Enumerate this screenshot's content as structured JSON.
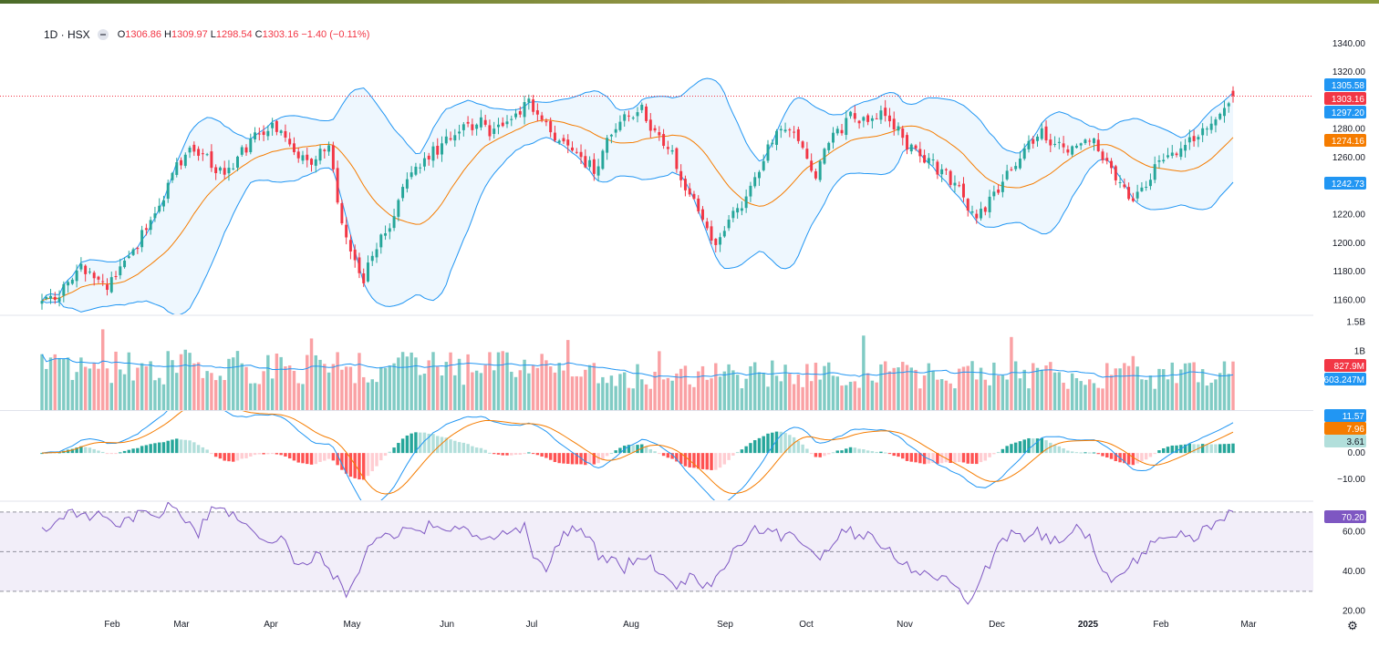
{
  "legend": {
    "symbol": "1D · HSX",
    "o_label": "O",
    "o": "1306.86",
    "h_label": "H",
    "h": "1309.97",
    "l_label": "L",
    "l": "1298.54",
    "c_label": "C",
    "c": "1303.16",
    "change": "−1.40 (−0.11%)"
  },
  "icons": {
    "visibility_toggle": "eye-toggle-icon",
    "settings": "gear-icon"
  },
  "colors": {
    "up": "#26a69a",
    "down": "#f23645",
    "bollinger_band": "#2196f3",
    "bollinger_fill": "#e3f2fd",
    "ma_line": "#f57c00",
    "rsi_line": "#7e57c2",
    "rsi_fill": "#ede7f6",
    "volume_ma": "#2196f3",
    "macd_line": "#2196f3",
    "signal_line": "#f57c00"
  },
  "chart_data": [
    {
      "type": "candlestick",
      "pane": "price",
      "symbol": "HSX",
      "interval": "1D",
      "ylim": [
        1150,
        1345
      ],
      "yticks": [
        "1340.00",
        "1320.00",
        "1280.00",
        "1260.00",
        "1240.00",
        "1220.00",
        "1200.00",
        "1180.00",
        "1160.00"
      ],
      "x_ticks": [
        "Feb",
        "Mar",
        "Apr",
        "May",
        "Jun",
        "Jul",
        "Aug",
        "Sep",
        "Oct",
        "Nov",
        "Dec",
        "2025",
        "Feb",
        "Mar"
      ],
      "close_anchor_points": [
        [
          0,
          1163
        ],
        [
          3,
          1160
        ],
        [
          6,
          1172
        ],
        [
          9,
          1182
        ],
        [
          12,
          1176
        ],
        [
          15,
          1170
        ],
        [
          18,
          1185
        ],
        [
          22,
          1200
        ],
        [
          26,
          1220
        ],
        [
          30,
          1248
        ],
        [
          34,
          1265
        ],
        [
          38,
          1258
        ],
        [
          42,
          1248
        ],
        [
          46,
          1265
        ],
        [
          50,
          1280
        ],
        [
          54,
          1282
        ],
        [
          58,
          1266
        ],
        [
          62,
          1255
        ],
        [
          66,
          1270
        ],
        [
          68,
          1230
        ],
        [
          71,
          1192
        ],
        [
          74,
          1175
        ],
        [
          77,
          1195
        ],
        [
          80,
          1215
        ],
        [
          84,
          1245
        ],
        [
          88,
          1258
        ],
        [
          92,
          1268
        ],
        [
          96,
          1282
        ],
        [
          100,
          1285
        ],
        [
          104,
          1278
        ],
        [
          108,
          1288
        ],
        [
          112,
          1300
        ],
        [
          116,
          1282
        ],
        [
          119,
          1272
        ],
        [
          122,
          1268
        ],
        [
          125,
          1258
        ],
        [
          127,
          1250
        ],
        [
          130,
          1275
        ],
        [
          134,
          1288
        ],
        [
          138,
          1292
        ],
        [
          142,
          1275
        ],
        [
          145,
          1260
        ],
        [
          148,
          1238
        ],
        [
          151,
          1225
        ],
        [
          153,
          1210
        ],
        [
          155,
          1198
        ],
        [
          158,
          1218
        ],
        [
          161,
          1228
        ],
        [
          164,
          1245
        ],
        [
          167,
          1268
        ],
        [
          170,
          1282
        ],
        [
          173,
          1278
        ],
        [
          176,
          1262
        ],
        [
          178,
          1245
        ],
        [
          180,
          1265
        ],
        [
          183,
          1278
        ],
        [
          186,
          1290
        ],
        [
          189,
          1286
        ],
        [
          192,
          1290
        ],
        [
          195,
          1285
        ],
        [
          198,
          1275
        ],
        [
          201,
          1262
        ],
        [
          204,
          1258
        ],
        [
          207,
          1250
        ],
        [
          210,
          1242
        ],
        [
          213,
          1225
        ],
        [
          215,
          1218
        ],
        [
          218,
          1232
        ],
        [
          221,
          1242
        ],
        [
          224,
          1258
        ],
        [
          227,
          1270
        ],
        [
          230,
          1277
        ],
        [
          233,
          1270
        ],
        [
          236,
          1264
        ],
        [
          239,
          1270
        ],
        [
          242,
          1270
        ],
        [
          245,
          1255
        ],
        [
          248,
          1240
        ],
        [
          251,
          1234
        ],
        [
          254,
          1242
        ],
        [
          257,
          1258
        ],
        [
          260,
          1265
        ],
        [
          263,
          1268
        ],
        [
          266,
          1274
        ],
        [
          269,
          1285
        ],
        [
          272,
          1295
        ],
        [
          274,
          1303.16
        ]
      ],
      "last_values": {
        "close": 1303.16,
        "high": 1309.97,
        "low": 1298.54,
        "open": 1306.86
      }
    },
    {
      "type": "line",
      "pane": "price",
      "series": [
        {
          "role": "bollinger-upper",
          "value_label": "1305.58",
          "value": 1305.58
        },
        {
          "role": "bollinger-basis",
          "value_label": "1274.16",
          "value": 1274.16
        },
        {
          "role": "bollinger-lower",
          "value_label": "1242.73",
          "value": 1242.73
        }
      ]
    },
    {
      "type": "bar",
      "pane": "volume",
      "ylim": [
        0,
        1600000000
      ],
      "yticks": [
        "1.5B",
        "1B"
      ],
      "value_labels": {
        "volume": "827.9M",
        "volume_ma": "603.247M"
      },
      "volume_ma_value": 603247000,
      "last_volume": 827900000
    },
    {
      "type": "bar",
      "pane": "macd",
      "ylim": [
        -18,
        16
      ],
      "yticks": [
        "0.00",
        "−10.00"
      ],
      "value_labels": {
        "macd": "11.57",
        "signal": "7.96",
        "histogram": "3.61"
      },
      "macd": 11.57,
      "signal": 7.96,
      "histogram": 3.61
    },
    {
      "type": "line",
      "pane": "rsi",
      "ylim": [
        18,
        75
      ],
      "yticks": [
        "60.00",
        "40.00",
        "20.00"
      ],
      "band_upper": 70,
      "band_middle": 50,
      "band_lower": 30,
      "value_label": "70.20",
      "value": 70.2,
      "anchor_points": [
        [
          0,
          60
        ],
        [
          3,
          65
        ],
        [
          6,
          70
        ],
        [
          9,
          66
        ],
        [
          12,
          70
        ],
        [
          15,
          66
        ],
        [
          18,
          62
        ],
        [
          21,
          68
        ],
        [
          24,
          72
        ],
        [
          27,
          70
        ],
        [
          30,
          73
        ],
        [
          33,
          66
        ],
        [
          36,
          60
        ],
        [
          38,
          68
        ],
        [
          40,
          72
        ],
        [
          43,
          70
        ],
        [
          46,
          65
        ],
        [
          49,
          60
        ],
        [
          52,
          52
        ],
        [
          55,
          58
        ],
        [
          58,
          46
        ],
        [
          61,
          44
        ],
        [
          64,
          50
        ],
        [
          66,
          40
        ],
        [
          68,
          35
        ],
        [
          70,
          30
        ],
        [
          72,
          36
        ],
        [
          75,
          50
        ],
        [
          78,
          56
        ],
        [
          81,
          58
        ],
        [
          84,
          62
        ],
        [
          87,
          60
        ],
        [
          90,
          64
        ],
        [
          93,
          58
        ],
        [
          96,
          62
        ],
        [
          99,
          60
        ],
        [
          102,
          55
        ],
        [
          105,
          58
        ],
        [
          108,
          60
        ],
        [
          111,
          62
        ],
        [
          113,
          46
        ],
        [
          116,
          42
        ],
        [
          119,
          55
        ],
        [
          122,
          62
        ],
        [
          125,
          60
        ],
        [
          128,
          48
        ],
        [
          131,
          46
        ],
        [
          134,
          42
        ],
        [
          137,
          48
        ],
        [
          140,
          46
        ],
        [
          143,
          38
        ],
        [
          146,
          32
        ],
        [
          149,
          38
        ],
        [
          152,
          34
        ],
        [
          155,
          36
        ],
        [
          158,
          46
        ],
        [
          161,
          56
        ],
        [
          164,
          62
        ],
        [
          167,
          60
        ],
        [
          170,
          58
        ],
        [
          173,
          60
        ],
        [
          176,
          52
        ],
        [
          179,
          46
        ],
        [
          182,
          56
        ],
        [
          185,
          62
        ],
        [
          188,
          58
        ],
        [
          191,
          60
        ],
        [
          194,
          52
        ],
        [
          197,
          46
        ],
        [
          200,
          42
        ],
        [
          203,
          40
        ],
        [
          206,
          38
        ],
        [
          209,
          34
        ],
        [
          212,
          28
        ],
        [
          214,
          25
        ],
        [
          217,
          40
        ],
        [
          220,
          52
        ],
        [
          223,
          60
        ],
        [
          226,
          58
        ],
        [
          229,
          60
        ],
        [
          232,
          55
        ],
        [
          235,
          58
        ],
        [
          238,
          62
        ],
        [
          241,
          58
        ],
        [
          244,
          40
        ],
        [
          247,
          36
        ],
        [
          250,
          42
        ],
        [
          253,
          48
        ],
        [
          256,
          55
        ],
        [
          259,
          58
        ],
        [
          262,
          60
        ],
        [
          265,
          56
        ],
        [
          268,
          62
        ],
        [
          271,
          66
        ],
        [
          274,
          70.2
        ]
      ]
    }
  ]
}
